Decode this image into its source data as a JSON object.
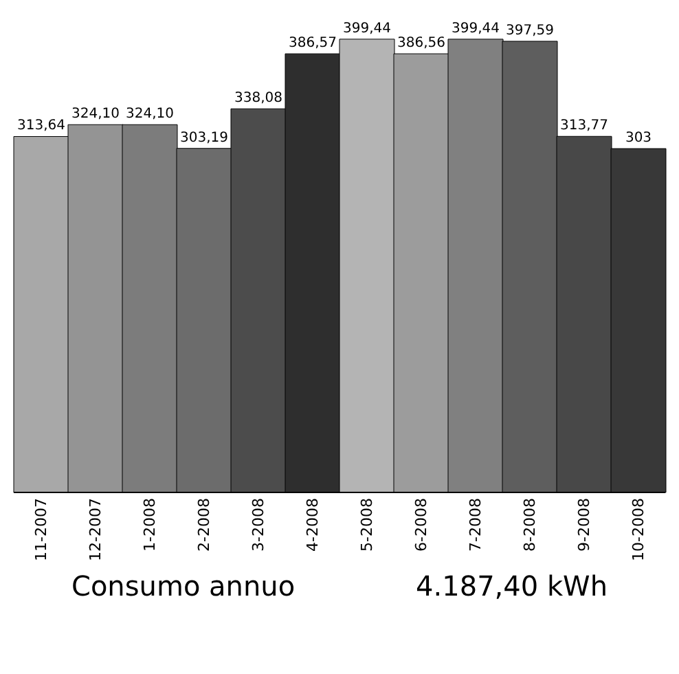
{
  "chart_data": {
    "type": "bar",
    "categories": [
      "11-2007",
      "12-2007",
      "1-2008",
      "2-2008",
      "3-2008",
      "4-2008",
      "5-2008",
      "6-2008",
      "7-2008",
      "8-2008",
      "9-2008",
      "10-2008"
    ],
    "values": [
      313.64,
      324.1,
      324.1,
      303.19,
      338.08,
      386.57,
      399.44,
      386.56,
      399.44,
      397.59,
      313.77,
      303
    ],
    "value_labels": [
      "313,64",
      "324,10",
      "324,10",
      "303,19",
      "338,08",
      "386,57",
      "399,44",
      "386,56",
      "399,44",
      "397,59",
      "313,77",
      "303"
    ],
    "colors": [
      "#a8a8a8",
      "#949494",
      "#7c7c7c",
      "#6c6c6c",
      "#4c4c4c",
      "#2e2e2e",
      "#b4b4b4",
      "#9c9c9c",
      "#808080",
      "#5e5e5e",
      "#484848",
      "#383838"
    ],
    "tick_labels": "x",
    "annotations": [
      "Consumo annuo",
      "4.187,40 kWh"
    ]
  }
}
